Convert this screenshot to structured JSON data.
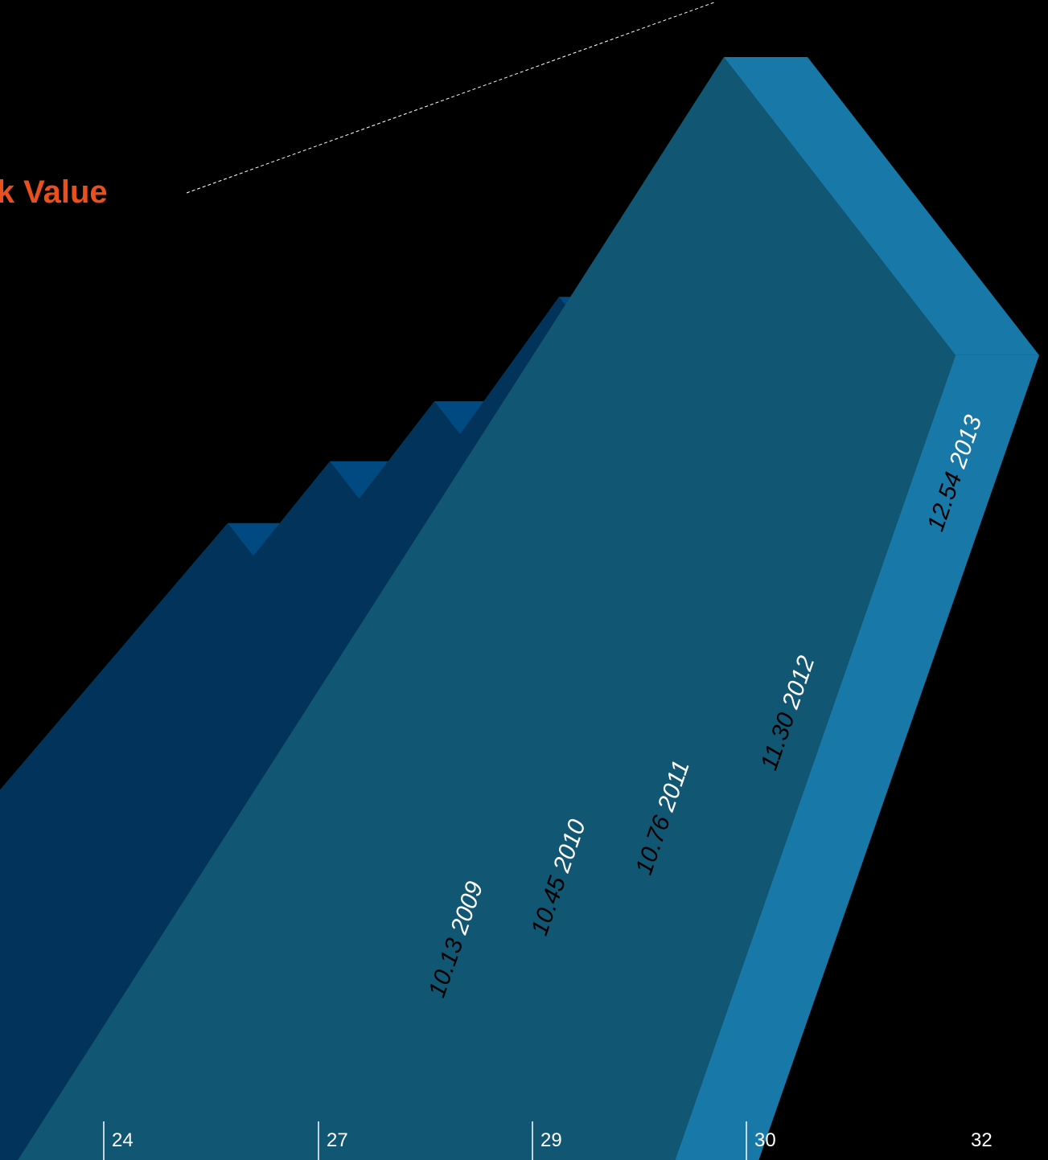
{
  "chart_data": {
    "type": "bar",
    "title": "Book Value",
    "xlabel": "",
    "ylabel": "",
    "categories": [
      "2009",
      "2010",
      "2011",
      "2012",
      "2013"
    ],
    "values": [
      10.13,
      10.45,
      10.76,
      11.3,
      12.54
    ],
    "value_labels": [
      "10.13",
      "10.45",
      "10.76",
      "11.30",
      "12.54"
    ],
    "axis_ticks": [
      "24",
      "27",
      "29",
      "30",
      "32"
    ],
    "grid": false,
    "legend": "none",
    "style": "3d-steps",
    "colors": {
      "background": "#000000",
      "title": "#e8501e",
      "dark_blue_front": "#02345b",
      "mid_blue_top": "#004a82",
      "mid_blue_side": "#004a82",
      "highlight_front": "#115672",
      "highlight_side": "#1878a7",
      "label_dark": "#000000",
      "label_light": "#ffffff",
      "leader_line": "#ffffff"
    }
  }
}
